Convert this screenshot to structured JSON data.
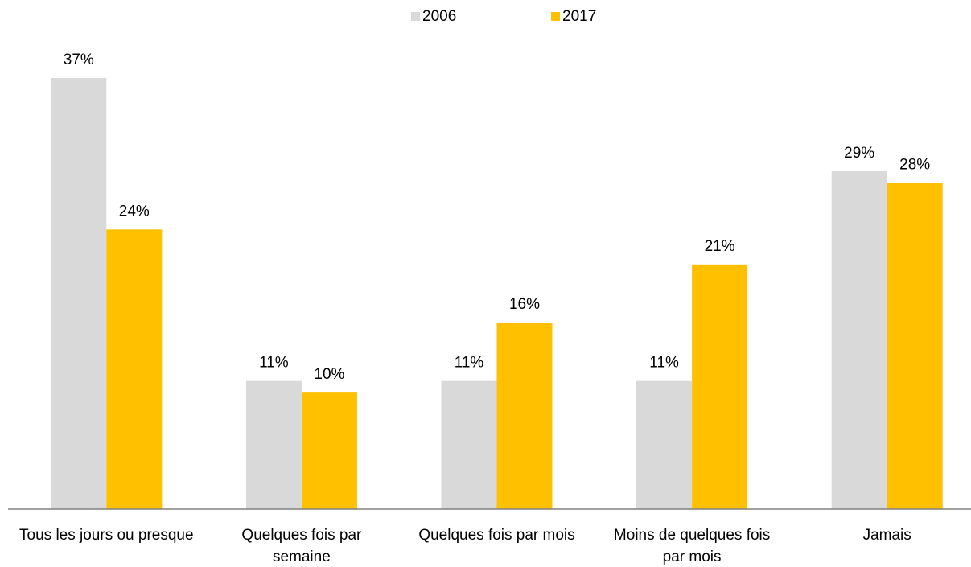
{
  "chart_data": {
    "type": "bar",
    "categories": [
      "Tous les jours ou presque",
      "Quelques fois par semaine",
      "Quelques fois par mois",
      "Moins de quelques fois par mois",
      "Jamais"
    ],
    "series": [
      {
        "name": "2006",
        "color": "#d9d9d9",
        "values": [
          37,
          11,
          11,
          11,
          29
        ],
        "value_labels": [
          "37%",
          "11%",
          "11%",
          "11%",
          "29%"
        ]
      },
      {
        "name": "2017",
        "color": "#ffc000",
        "values": [
          24,
          10,
          16,
          21,
          28
        ],
        "value_labels": [
          "24%",
          "10%",
          "16%",
          "21%",
          "28%"
        ]
      }
    ],
    "legend": "top"
  }
}
